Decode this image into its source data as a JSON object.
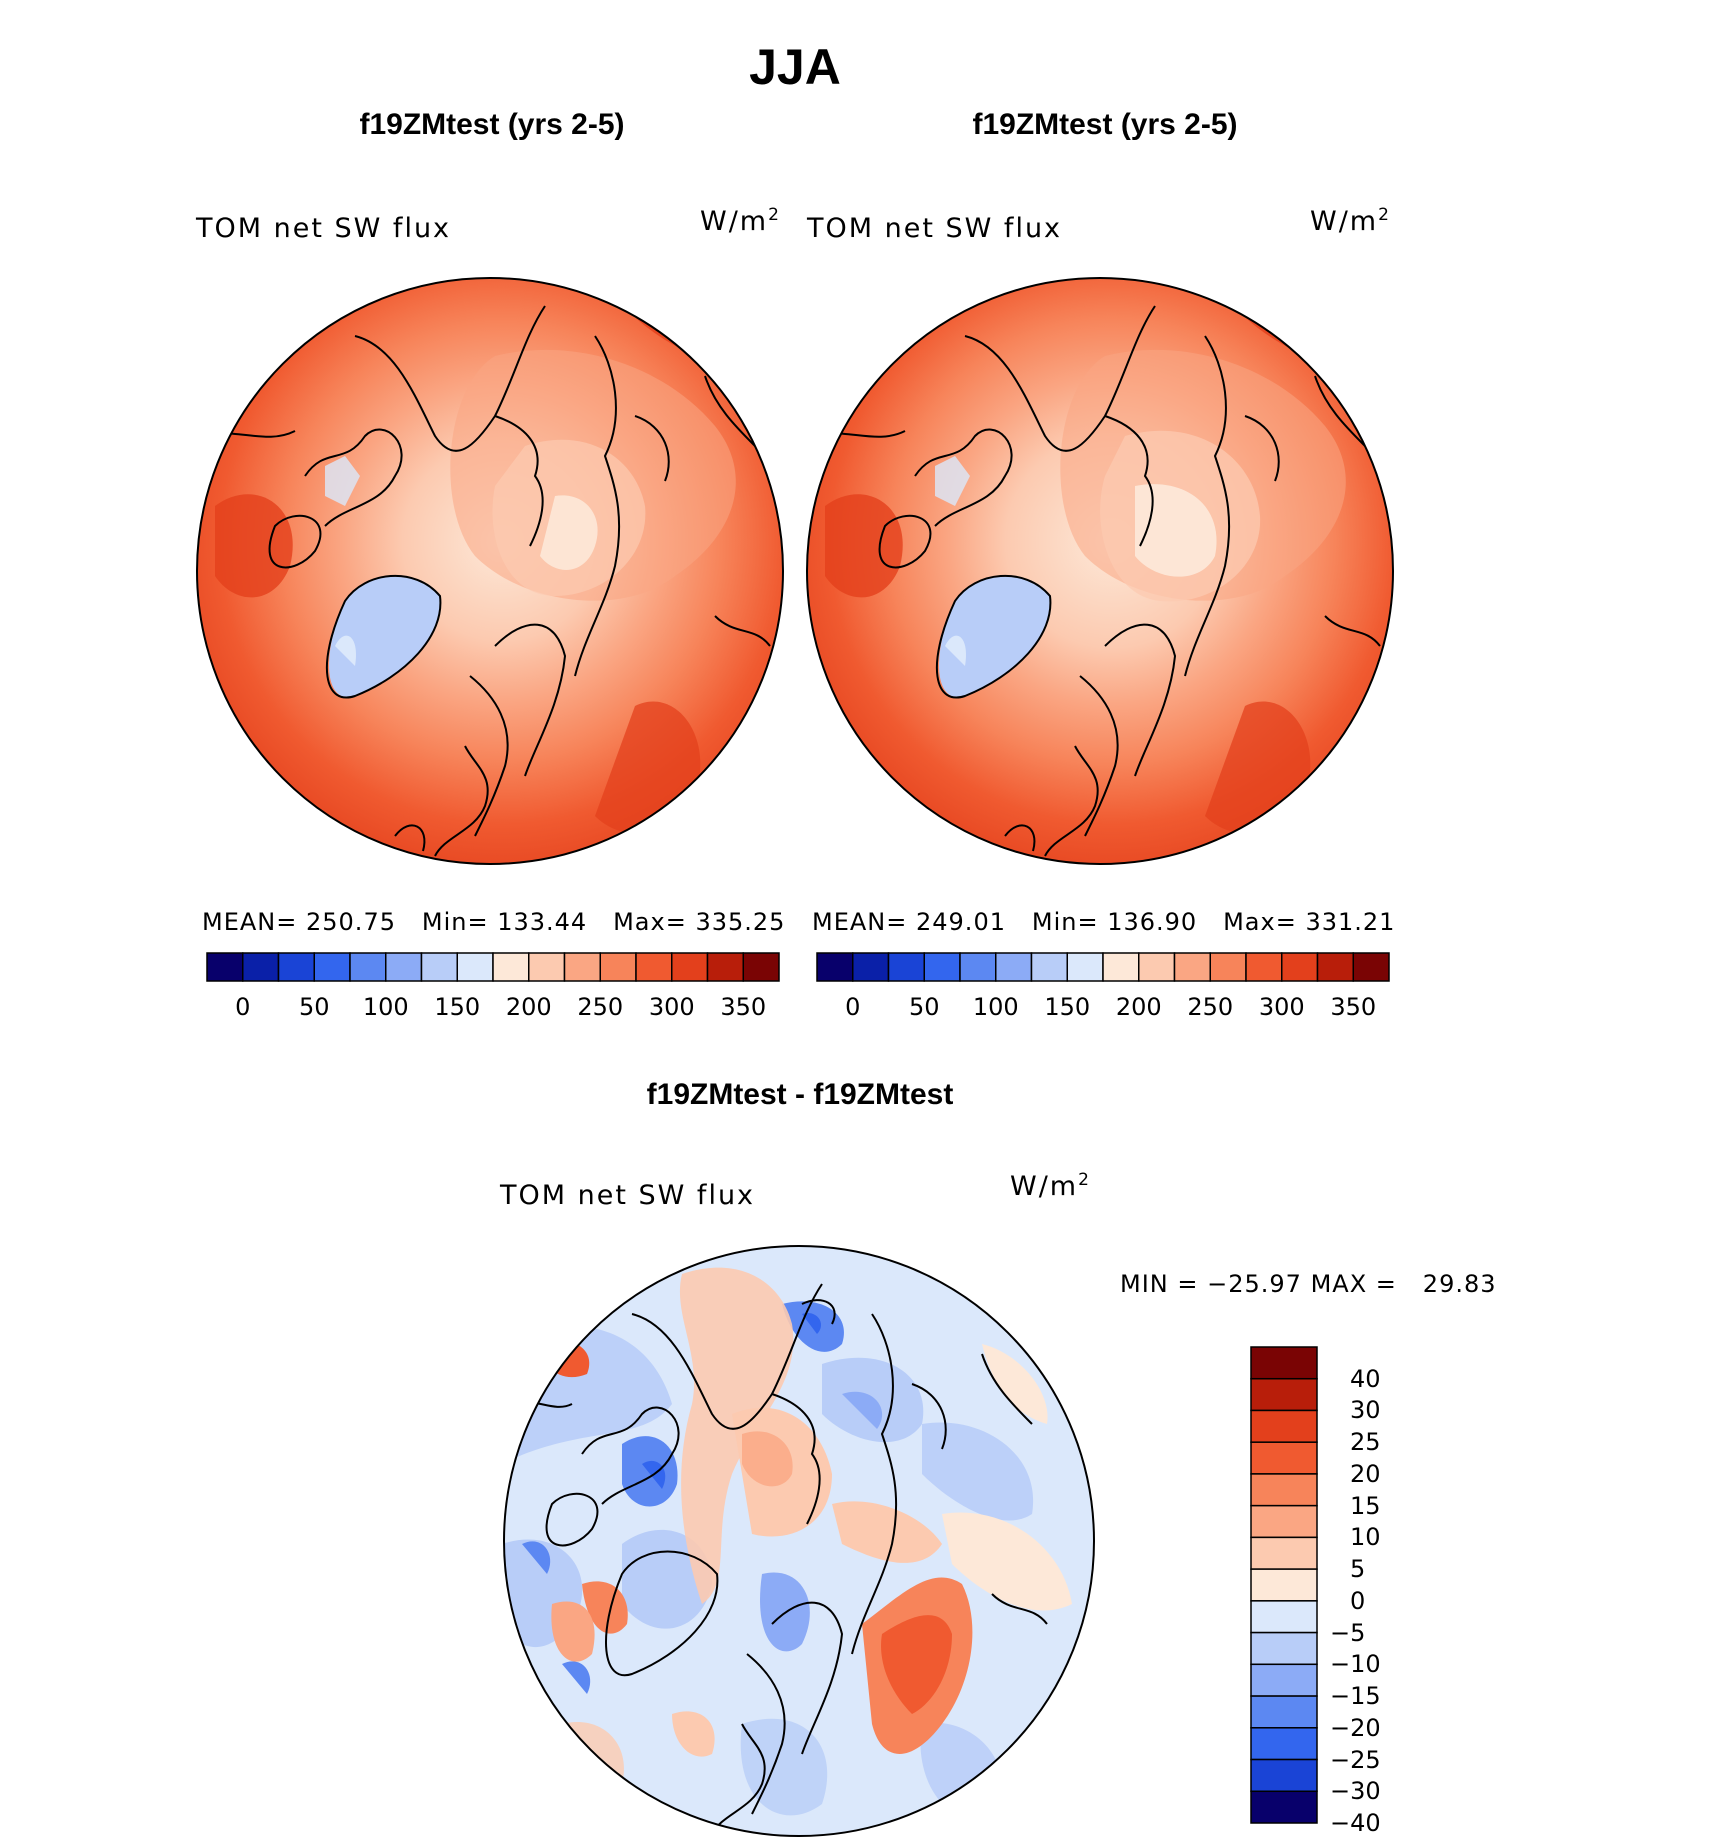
{
  "chart_data": [
    {
      "type": "polar-stereographic filled contour map",
      "panel": "top-left",
      "title": "f19ZMtest (yrs 2-5)",
      "variable_label": "TOM net SW flux",
      "units": "W/m",
      "units_exponent": "2",
      "stats": {
        "mean_label": "MEAN=",
        "mean": "250.75",
        "min_label": "Min=",
        "min": "133.44",
        "max_label": "Max=",
        "max": "335.25"
      },
      "colorbar_ticks": [
        "0",
        "50",
        "100",
        "150",
        "200",
        "250",
        "300",
        "350"
      ]
    },
    {
      "type": "polar-stereographic filled contour map",
      "panel": "top-right",
      "title": "f19ZMtest (yrs 2-5)",
      "variable_label": "TOM net SW flux",
      "units": "W/m",
      "units_exponent": "2",
      "stats": {
        "mean_label": "MEAN=",
        "mean": "249.01",
        "min_label": "Min=",
        "min": "136.90",
        "max_label": "Max=",
        "max": "331.21"
      },
      "colorbar_ticks": [
        "0",
        "50",
        "100",
        "150",
        "200",
        "250",
        "300",
        "350"
      ]
    },
    {
      "type": "polar-stereographic filled contour map (difference)",
      "panel": "bottom",
      "title": "f19ZMtest - f19ZMtest",
      "variable_label": "TOM net SW flux",
      "units": "W/m",
      "units_exponent": "2",
      "stats": {
        "min_label": "MIN =",
        "min": "−25.97",
        "max_label": "MAX =",
        "max": "29.83"
      },
      "colorbar_ticks": [
        "40",
        "30",
        "25",
        "20",
        "15",
        "10",
        "5",
        "0",
        "−5",
        "−10",
        "−15",
        "−20",
        "−25",
        "−30",
        "−40"
      ]
    }
  ],
  "figure_title": "JJA",
  "colors": {
    "abs_scale": [
      "#08006b",
      "#0a20a8",
      "#1a44d6",
      "#3366ee",
      "#5c88f2",
      "#8cabf6",
      "#b8cdf8",
      "#dbe8fb",
      "#fde8d8",
      "#fccab0",
      "#faa683",
      "#f7845a",
      "#f05a30",
      "#e3401c",
      "#b81e0a",
      "#7a0404"
    ],
    "diff_scale": [
      "#7a0404",
      "#b81e0a",
      "#e3401c",
      "#f05a30",
      "#f7845a",
      "#faa683",
      "#fccab0",
      "#fde8d8",
      "#dbe8fb",
      "#b8cdf8",
      "#8cabf6",
      "#5c88f2",
      "#3366ee",
      "#1a44d6",
      "#08006b"
    ]
  }
}
